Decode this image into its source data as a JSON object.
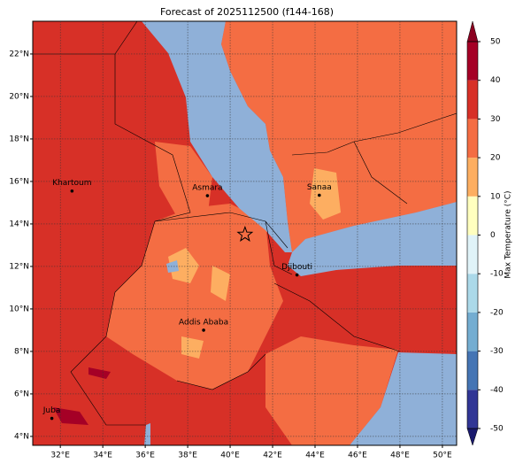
{
  "map": {
    "title": "Forecast of 2025112500 (f144-168)",
    "lonlim": [
      30.7,
      50.67
    ],
    "latlim": [
      3.58,
      23.54
    ],
    "lon_ticks": [
      {
        "value": 32,
        "label": "32°E"
      },
      {
        "value": 34,
        "label": "34°E"
      },
      {
        "value": 36,
        "label": "36°E"
      },
      {
        "value": 38,
        "label": "38°E"
      },
      {
        "value": 40,
        "label": "40°E"
      },
      {
        "value": 42,
        "label": "42°E"
      },
      {
        "value": 44,
        "label": "44°E"
      },
      {
        "value": 46,
        "label": "46°E"
      },
      {
        "value": 48,
        "label": "48°E"
      },
      {
        "value": 50,
        "label": "50°E"
      }
    ],
    "lat_ticks": [
      {
        "value": 4,
        "label": "4°N"
      },
      {
        "value": 6,
        "label": "6°N"
      },
      {
        "value": 8,
        "label": "8°N"
      },
      {
        "value": 10,
        "label": "10°N"
      },
      {
        "value": 12,
        "label": "12°N"
      },
      {
        "value": 14,
        "label": "14°N"
      },
      {
        "value": 16,
        "label": "16°N"
      },
      {
        "value": 18,
        "label": "18°N"
      },
      {
        "value": 20,
        "label": "20°N"
      },
      {
        "value": 22,
        "label": "22°N"
      }
    ],
    "grid": true,
    "cities": [
      {
        "name": "Khartoum",
        "lon": 32.55,
        "lat": 15.55
      },
      {
        "name": "Asmara",
        "lon": 38.93,
        "lat": 15.33
      },
      {
        "name": "Sanaa",
        "lon": 44.2,
        "lat": 15.35
      },
      {
        "name": "Djibouti",
        "lon": 43.15,
        "lat": 11.6
      },
      {
        "name": "Addis Ababa",
        "lon": 38.75,
        "lat": 9.0
      },
      {
        "name": "Juba",
        "lon": 31.6,
        "lat": 4.85
      }
    ],
    "marker": {
      "lon": 40.7,
      "lat": 13.5
    },
    "colorbar": {
      "label": "Max Temperature (°C)",
      "range": [
        -50,
        50
      ],
      "ticks": [
        -50,
        -40,
        -30,
        -20,
        -10,
        0,
        10,
        20,
        30,
        40,
        50
      ],
      "colors": [
        "#313695",
        "#4575b4",
        "#74add1",
        "#abd9e9",
        "#e0f3f8",
        "#ffffbf",
        "#fdae61",
        "#f46d43",
        "#d73027",
        "#a50026"
      ],
      "under_color": "#1a1a6e",
      "over_color": "#8b0020"
    }
  }
}
